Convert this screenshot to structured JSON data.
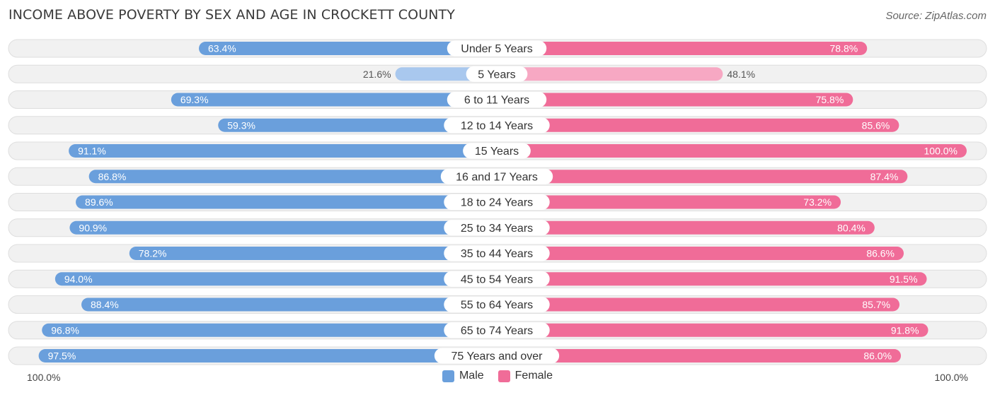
{
  "title": "INCOME ABOVE POVERTY BY SEX AND AGE IN CROCKETT COUNTY",
  "source": "Source: ZipAtlas.com",
  "colors": {
    "male_dark": "#6a9fdc",
    "male_light": "#a9c8ee",
    "female_dark": "#f06c98",
    "female_light": "#f7a8c3"
  },
  "chart_data": {
    "type": "bar",
    "orientation": "horizontal-diverging",
    "title": "INCOME ABOVE POVERTY BY SEX AND AGE IN CROCKETT COUNTY",
    "categories": [
      "Under 5 Years",
      "5 Years",
      "6 to 11 Years",
      "12 to 14 Years",
      "15 Years",
      "16 and 17 Years",
      "18 to 24 Years",
      "25 to 34 Years",
      "35 to 44 Years",
      "45 to 54 Years",
      "55 to 64 Years",
      "65 to 74 Years",
      "75 Years and over"
    ],
    "series": [
      {
        "name": "Male",
        "values": [
          63.4,
          21.6,
          69.3,
          59.3,
          91.1,
          86.8,
          89.6,
          90.9,
          78.2,
          94.0,
          88.4,
          96.8,
          97.5
        ]
      },
      {
        "name": "Female",
        "values": [
          78.8,
          48.1,
          75.8,
          85.6,
          100.0,
          87.4,
          73.2,
          80.4,
          86.6,
          91.5,
          85.7,
          91.8,
          86.0
        ]
      }
    ],
    "value_labels": {
      "male": [
        "63.4%",
        "21.6%",
        "69.3%",
        "59.3%",
        "91.1%",
        "86.8%",
        "89.6%",
        "90.9%",
        "78.2%",
        "94.0%",
        "88.4%",
        "96.8%",
        "97.5%"
      ],
      "female": [
        "78.8%",
        "48.1%",
        "75.8%",
        "85.6%",
        "100.0%",
        "87.4%",
        "73.2%",
        "80.4%",
        "86.6%",
        "91.5%",
        "85.7%",
        "91.8%",
        "86.0%"
      ]
    },
    "xlim": [
      0,
      100
    ],
    "axis_labels": {
      "left": "100.0%",
      "right": "100.0%"
    },
    "legend": {
      "position": "bottom-center",
      "entries": [
        "Male",
        "Female"
      ]
    }
  }
}
